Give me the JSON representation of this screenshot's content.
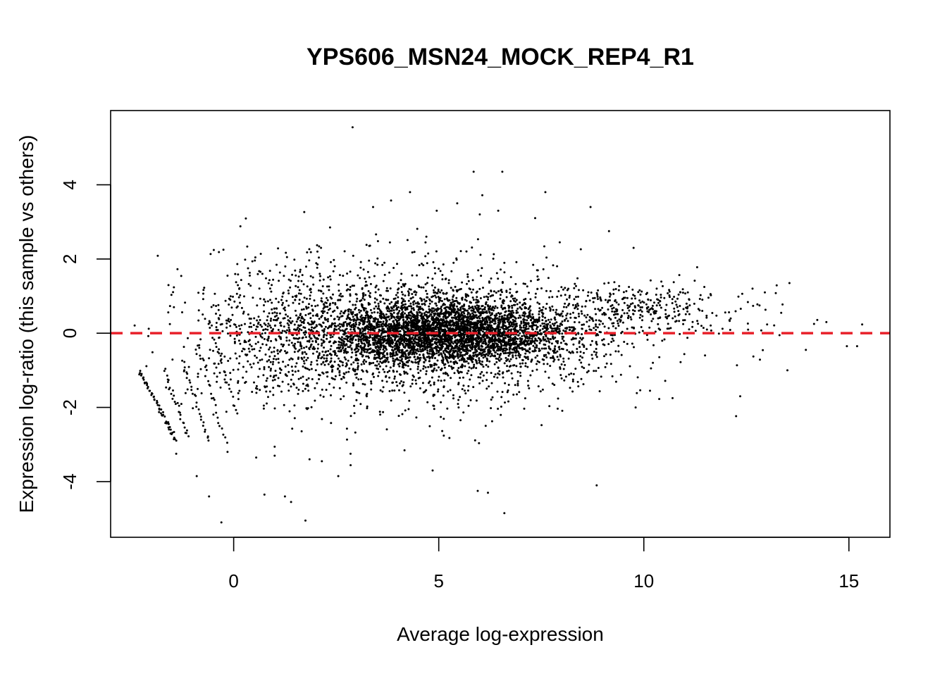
{
  "chart_data": {
    "type": "scatter",
    "title": "YPS606_MSN24_MOCK_REP4_R1",
    "xlabel": "Average log-expression",
    "ylabel": "Expression log-ratio (this sample vs others)",
    "xlim": [
      -3.0,
      16.0
    ],
    "ylim": [
      -5.5,
      6.0
    ],
    "x_ticks": [
      0,
      5,
      10,
      15
    ],
    "y_ticks": [
      -4,
      -2,
      0,
      2,
      4
    ],
    "point_color": "#000000",
    "reference_line": {
      "y": 0,
      "style": "dashed",
      "color": "#e8202a"
    },
    "grid": false,
    "legend": "none",
    "points": [
      [
        2.9,
        5.55
      ],
      [
        5.85,
        4.35
      ],
      [
        6.55,
        4.35
      ],
      [
        4.3,
        3.8
      ],
      [
        7.6,
        3.8
      ],
      [
        8.7,
        3.4
      ],
      [
        4.95,
        3.3
      ],
      [
        5.45,
        3.5
      ],
      [
        6.0,
        3.2
      ],
      [
        6.45,
        3.3
      ],
      [
        7.35,
        3.1
      ],
      [
        3.4,
        3.4
      ],
      [
        2.35,
        2.85
      ],
      [
        9.15,
        2.75
      ],
      [
        7.95,
        2.45
      ],
      [
        9.75,
        2.3
      ],
      [
        -0.25,
        2.25
      ],
      [
        1.3,
        2.05
      ],
      [
        0.35,
        1.75
      ],
      [
        0.7,
        1.6
      ],
      [
        12.65,
        1.2
      ],
      [
        12.95,
        1.1
      ],
      [
        13.55,
        1.35
      ],
      [
        13.35,
        0.55
      ],
      [
        14.15,
        0.25
      ],
      [
        14.45,
        0.3
      ],
      [
        15.2,
        -0.35
      ],
      [
        14.95,
        -0.35
      ],
      [
        13.95,
        -0.45
      ],
      [
        13.5,
        -1.0
      ],
      [
        12.35,
        -1.7
      ],
      [
        10.7,
        -1.75
      ],
      [
        10.15,
        -1.55
      ],
      [
        9.8,
        -2.0
      ],
      [
        8.85,
        -4.1
      ],
      [
        6.6,
        -4.85
      ],
      [
        6.2,
        -4.3
      ],
      [
        5.95,
        -4.25
      ],
      [
        4.85,
        -3.7
      ],
      [
        2.55,
        -3.85
      ],
      [
        1.75,
        -5.05
      ],
      [
        1.4,
        -4.55
      ],
      [
        1.25,
        -4.4
      ],
      [
        0.75,
        -4.35
      ],
      [
        -0.3,
        -5.1
      ],
      [
        -0.6,
        -4.4
      ],
      [
        -0.9,
        -3.85
      ],
      [
        -1.4,
        -3.25
      ],
      [
        0.55,
        -3.35
      ],
      [
        1.0,
        -3.3
      ],
      [
        1.85,
        -3.4
      ],
      [
        2.15,
        -3.45
      ],
      [
        2.85,
        -3.25
      ],
      [
        -0.15,
        -3.2
      ]
    ],
    "density_clusters": [
      {
        "cx": 5.2,
        "cy": 0.0,
        "sx": 1.55,
        "sy": 0.42,
        "n": 3400
      },
      {
        "cx": 5.0,
        "cy": 0.0,
        "sx": 2.3,
        "sy": 0.85,
        "n": 1500
      },
      {
        "cx": 3.5,
        "cy": 0.0,
        "sx": 2.0,
        "sy": 1.2,
        "n": 600
      },
      {
        "cx": 9.8,
        "cy": 0.65,
        "sx": 1.0,
        "sy": 0.32,
        "n": 260
      },
      {
        "cx": 0.8,
        "cy": -0.1,
        "sx": 1.1,
        "sy": 1.0,
        "n": 380
      },
      {
        "cx": 12.0,
        "cy": 0.4,
        "sx": 1.2,
        "sy": 0.5,
        "n": 45
      }
    ],
    "low_count_streaks": [
      {
        "x0": -2.3,
        "y0": -1.0,
        "x1": -1.4,
        "y1": -2.9,
        "n": 55
      },
      {
        "x0": -1.7,
        "y0": -1.0,
        "x1": -1.1,
        "y1": -2.8,
        "n": 26
      },
      {
        "x0": -1.25,
        "y0": -0.7,
        "x1": -0.6,
        "y1": -2.95,
        "n": 26
      },
      {
        "x0": -0.9,
        "y0": -0.3,
        "x1": -0.2,
        "y1": -3.0,
        "n": 22
      },
      {
        "x0": -0.6,
        "y0": 0.3,
        "x1": 0.1,
        "y1": -2.2,
        "n": 18
      }
    ]
  }
}
